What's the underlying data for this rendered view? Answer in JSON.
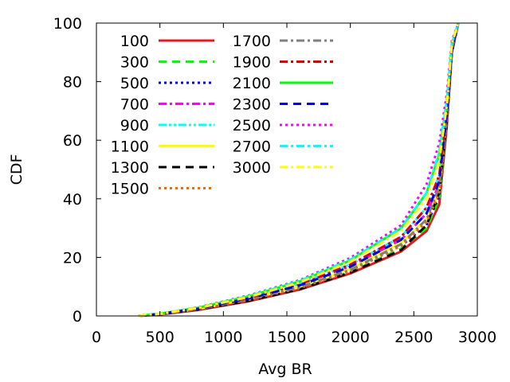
{
  "chart_data": {
    "type": "line",
    "title": "",
    "xlabel": "Avg BR",
    "ylabel": "CDF",
    "xlim": [
      0,
      3000
    ],
    "ylim": [
      0,
      100
    ],
    "xticks": [
      0,
      500,
      1000,
      1500,
      2000,
      2500,
      3000
    ],
    "yticks": [
      0,
      20,
      40,
      60,
      80,
      100
    ],
    "grid": false,
    "legend_position": "top-left, inside, two columns",
    "series": [
      {
        "name": "100",
        "color": "#e41a1c",
        "dash": "solid",
        "x": [
          330,
          500,
          800,
          1200,
          1600,
          2000,
          2400,
          2600,
          2700,
          2760,
          2800,
          2850
        ],
        "y": [
          0,
          0.5,
          2,
          5,
          9,
          14.5,
          22,
          29,
          38,
          65,
          90,
          100
        ]
      },
      {
        "name": "300",
        "color": "#00ff00",
        "dash": "dash",
        "x": [
          330,
          500,
          800,
          1200,
          1600,
          2000,
          2400,
          2600,
          2700,
          2760,
          2800,
          2850
        ],
        "y": [
          0,
          0.6,
          2.2,
          5.3,
          9.3,
          15,
          23,
          30,
          40,
          66,
          90,
          100
        ]
      },
      {
        "name": "500",
        "color": "#0000ee",
        "dash": "dot",
        "x": [
          330,
          500,
          800,
          1200,
          1600,
          2000,
          2400,
          2600,
          2700,
          2760,
          2800,
          2850
        ],
        "y": [
          0,
          0.6,
          2.3,
          5.6,
          9.7,
          15.6,
          24,
          31,
          41,
          67,
          91,
          100
        ]
      },
      {
        "name": "700",
        "color": "#ff00ff",
        "dash": "dashdot",
        "x": [
          330,
          500,
          800,
          1200,
          1600,
          2000,
          2400,
          2600,
          2700,
          2760,
          2800,
          2850
        ],
        "y": [
          0,
          0.7,
          2.5,
          6,
          10.5,
          17,
          26,
          35,
          45,
          68,
          91,
          100
        ]
      },
      {
        "name": "900",
        "color": "#00ffff",
        "dash": "dashdotdot",
        "x": [
          330,
          500,
          800,
          1200,
          1600,
          2000,
          2400,
          2600,
          2700,
          2760,
          2800,
          2850
        ],
        "y": [
          0,
          0.7,
          2.6,
          6.3,
          11,
          17.5,
          27,
          37,
          48,
          70,
          92,
          100
        ]
      },
      {
        "name": "1100",
        "color": "#ffff00",
        "dash": "solid",
        "x": [
          330,
          500,
          800,
          1200,
          1600,
          2000,
          2400,
          2600,
          2700,
          2760,
          2800,
          2850
        ],
        "y": [
          0,
          0.6,
          2.4,
          5.8,
          10,
          16,
          25,
          33,
          43,
          68,
          91,
          100
        ]
      },
      {
        "name": "1300",
        "color": "#000000",
        "dash": "dash",
        "x": [
          330,
          500,
          800,
          1200,
          1600,
          2000,
          2400,
          2600,
          2700,
          2760,
          2800,
          2850
        ],
        "y": [
          0,
          0.6,
          2.2,
          5.2,
          9.1,
          14.8,
          22.5,
          31,
          42,
          66,
          90,
          100
        ]
      },
      {
        "name": "1500",
        "color": "#ff6600",
        "dash": "dot",
        "x": [
          330,
          500,
          800,
          1200,
          1600,
          2000,
          2400,
          2600,
          2700,
          2760,
          2800,
          2850
        ],
        "y": [
          0,
          0.6,
          2.3,
          5.5,
          9.5,
          15.3,
          24,
          32,
          42,
          67,
          91,
          100
        ]
      },
      {
        "name": "1700",
        "color": "#808080",
        "dash": "dashdot",
        "x": [
          330,
          500,
          800,
          1200,
          1600,
          2000,
          2400,
          2600,
          2700,
          2760,
          2800,
          2850
        ],
        "y": [
          0,
          0.6,
          2.3,
          5.6,
          9.8,
          15.8,
          24.5,
          33,
          44,
          68,
          91,
          100
        ]
      },
      {
        "name": "1900",
        "color": "#dd0000",
        "dash": "dashdot",
        "x": [
          330,
          500,
          800,
          1200,
          1600,
          2000,
          2400,
          2600,
          2700,
          2760,
          2800,
          2850
        ],
        "y": [
          0,
          0.7,
          2.5,
          6.2,
          10.8,
          17.5,
          27,
          37,
          48,
          70,
          92,
          100
        ]
      },
      {
        "name": "2100",
        "color": "#00ff00",
        "dash": "solid",
        "x": [
          330,
          500,
          800,
          1200,
          1600,
          2000,
          2400,
          2600,
          2700,
          2760,
          2800,
          2850
        ],
        "y": [
          0,
          0.8,
          2.8,
          6.7,
          11.8,
          19,
          30,
          42,
          55,
          73,
          93,
          100
        ]
      },
      {
        "name": "2300",
        "color": "#0000ee",
        "dash": "dash",
        "x": [
          330,
          500,
          800,
          1200,
          1600,
          2000,
          2400,
          2600,
          2700,
          2760,
          2800,
          2850
        ],
        "y": [
          0,
          0.7,
          2.5,
          6,
          10.4,
          16.8,
          26,
          35,
          46,
          69,
          91,
          100
        ]
      },
      {
        "name": "2500",
        "color": "#ff00ff",
        "dash": "dot",
        "x": [
          330,
          500,
          800,
          1200,
          1600,
          2000,
          2400,
          2600,
          2700,
          2760,
          2800,
          2850
        ],
        "y": [
          0,
          0.8,
          2.9,
          7,
          12.2,
          19.8,
          31,
          45,
          59,
          76,
          94,
          100
        ]
      },
      {
        "name": "2700",
        "color": "#00ffff",
        "dash": "dashdot",
        "x": [
          330,
          500,
          800,
          1200,
          1600,
          2000,
          2400,
          2600,
          2700,
          2760,
          2800,
          2850
        ],
        "y": [
          0,
          0.8,
          2.8,
          6.8,
          11.9,
          19.2,
          30,
          42,
          56,
          74,
          93,
          100
        ]
      },
      {
        "name": "3000",
        "color": "#ffff00",
        "dash": "dashdot",
        "x": [
          330,
          500,
          800,
          1200,
          1600,
          2000,
          2400,
          2600,
          2700,
          2760,
          2800,
          2850
        ],
        "y": [
          0,
          0.7,
          2.7,
          6.5,
          11.4,
          18.5,
          29,
          40,
          53,
          72,
          93,
          100
        ]
      }
    ]
  }
}
